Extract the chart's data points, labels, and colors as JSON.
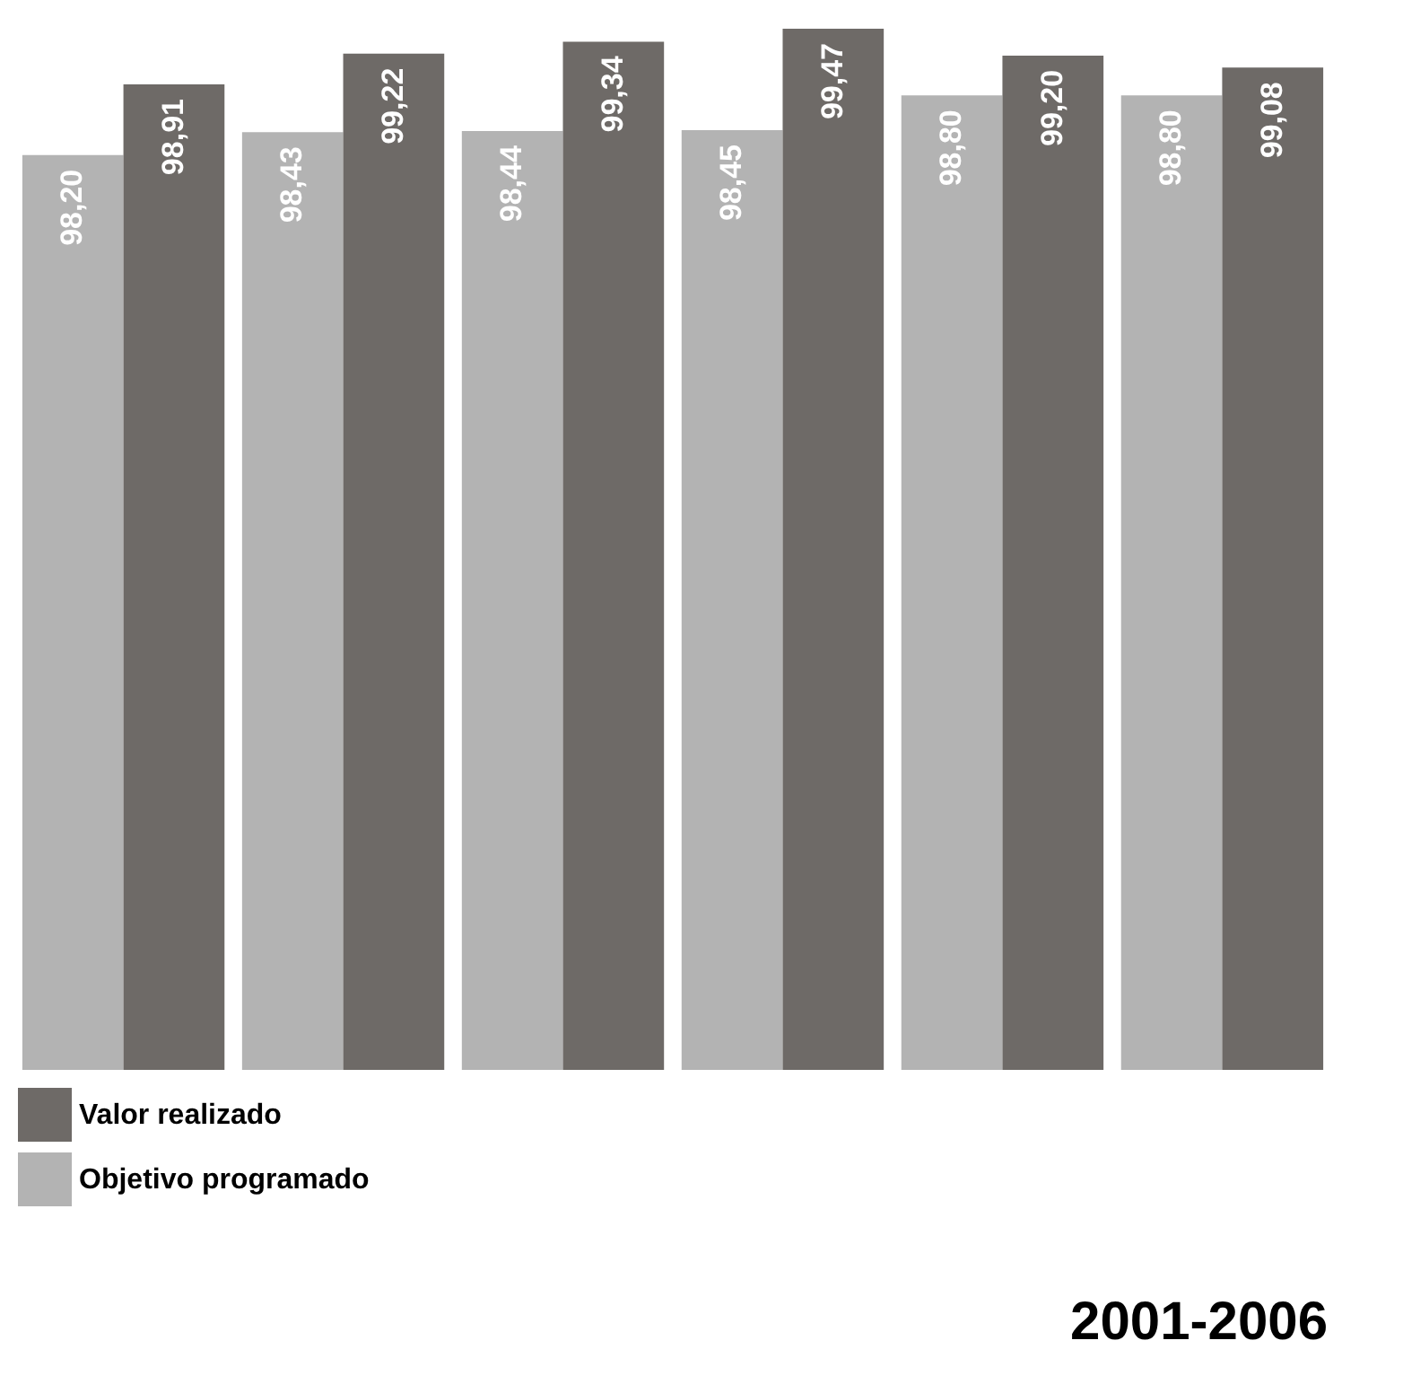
{
  "chart_data": {
    "type": "bar",
    "title": "2001-2006",
    "categories": [
      null,
      null,
      null,
      null,
      null,
      null
    ],
    "series": [
      {
        "name": "Objetivo programado",
        "color": "#b3b3b3",
        "values": [
          98.2,
          98.43,
          98.44,
          98.45,
          98.8,
          98.8
        ],
        "value_labels": [
          "98,20",
          "98,43",
          "98,44",
          "98,45",
          "98,80",
          "98,80"
        ]
      },
      {
        "name": "Valor realizado",
        "color": "#6e6a67",
        "values": [
          98.91,
          99.22,
          99.34,
          99.47,
          99.2,
          99.08
        ],
        "value_labels": [
          "98,91",
          "99,22",
          "99,34",
          "99,47",
          "99,20",
          "99,08"
        ]
      }
    ],
    "ylim": [
      89,
      99.47
    ],
    "legend": "bottom left"
  }
}
